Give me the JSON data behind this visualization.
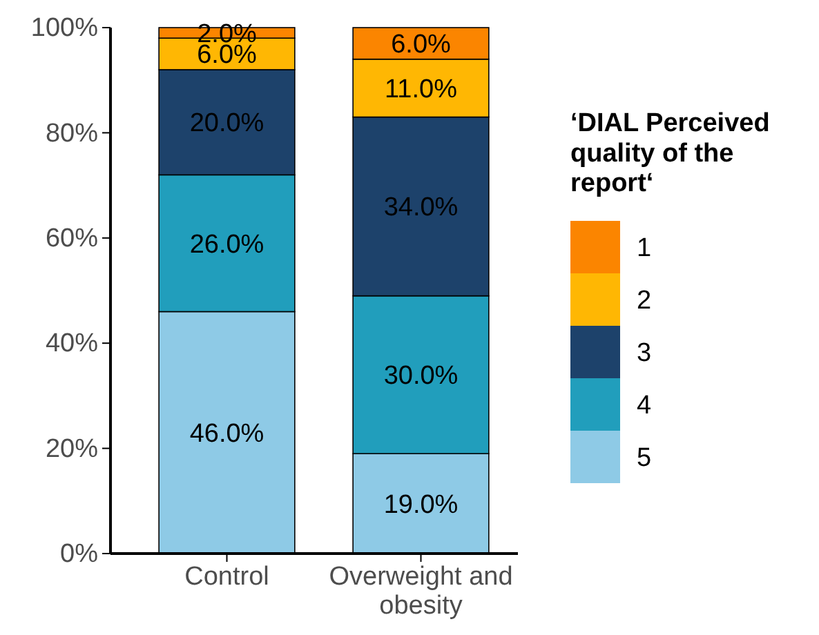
{
  "chart_data": {
    "type": "bar",
    "stacked": true,
    "categories": [
      "Control",
      "Overweight and obesity"
    ],
    "series": [
      {
        "name": "5",
        "color": "#8ecae6",
        "values": [
          46.0,
          19.0
        ],
        "value_labels": [
          "46.0%",
          "19.0%"
        ]
      },
      {
        "name": "4",
        "color": "#219ebc",
        "values": [
          26.0,
          30.0
        ],
        "value_labels": [
          "26.0%",
          "30.0%"
        ]
      },
      {
        "name": "3",
        "color": "#1d426b",
        "values": [
          20.0,
          34.0
        ],
        "value_labels": [
          "20.0%",
          "34.0%"
        ]
      },
      {
        "name": "2",
        "color": "#ffb703",
        "values": [
          6.0,
          11.0
        ],
        "value_labels": [
          "6.0%",
          "11.0%"
        ]
      },
      {
        "name": "1",
        "color": "#fb8500",
        "values": [
          2.0,
          6.0
        ],
        "value_labels": [
          "2.0%",
          "6.0%"
        ]
      }
    ],
    "legend_title": "‘DIAL Perceived quality of the report‘",
    "legend": "right",
    "ylim": [
      0,
      100
    ],
    "yticks": [
      {
        "value": 0,
        "label": "0%"
      },
      {
        "value": 20,
        "label": "20%"
      },
      {
        "value": 40,
        "label": "40%"
      },
      {
        "value": 60,
        "label": "60%"
      },
      {
        "value": 80,
        "label": "80%"
      },
      {
        "value": 100,
        "label": "100%"
      }
    ]
  }
}
